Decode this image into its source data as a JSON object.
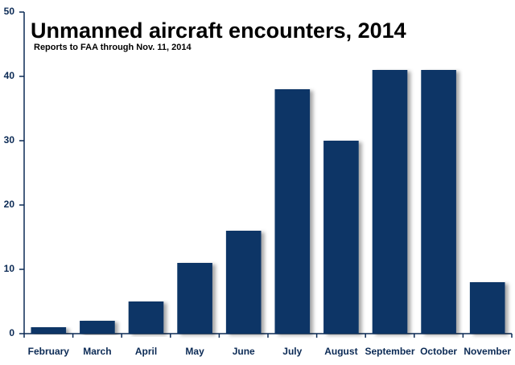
{
  "chart_data": {
    "type": "bar",
    "title": "Unmanned aircraft encounters, 2014",
    "subtitle": "Reports to FAA through Nov. 11, 2014",
    "categories": [
      "February",
      "March",
      "April",
      "May",
      "June",
      "July",
      "August",
      "September",
      "October",
      "November"
    ],
    "values": [
      1,
      2,
      5,
      11,
      16,
      38,
      30,
      41,
      41,
      8
    ],
    "color": "#0b3566",
    "ylim": [
      0,
      50
    ],
    "yticks": [
      0,
      10,
      20,
      30,
      40,
      50
    ],
    "grid": false
  }
}
